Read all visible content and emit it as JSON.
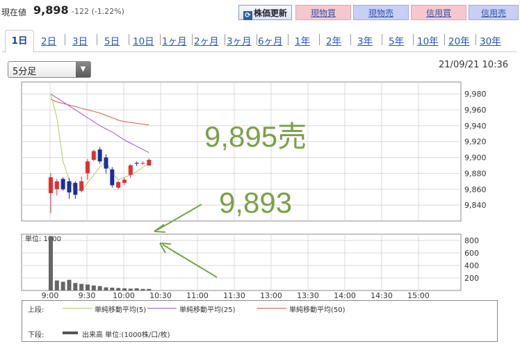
{
  "header": {
    "price_label": "現在値",
    "price_value": "9,898",
    "price_change": "-122 (-1.22%)",
    "refresh_label": "株価更新",
    "buy_cash": "現物買",
    "sell_cash": "現物売",
    "buy_margin": "信用買",
    "sell_margin": "信用売"
  },
  "tabs": [
    "1日",
    "2日",
    "3日",
    "5日",
    "10日",
    "1ヶ月",
    "2ヶ月",
    "3ヶ月",
    "6ヶ月",
    "1年",
    "2年",
    "3年",
    "5年",
    "10年",
    "20年",
    "30年"
  ],
  "interval_select": {
    "selected": "5分足"
  },
  "datetime": "21/09/21 10:36",
  "colors": {
    "up": "#e03030",
    "down": "#1a2f9e",
    "ma5": "#a8cc60",
    "ma25": "#9955d8",
    "ma50": "#d06040",
    "volume": "#666666",
    "annotation": "#7aa04a"
  },
  "chart_data": {
    "type": "candlestick",
    "x_ticks": [
      "9:00",
      "9:30",
      "10:00",
      "10:30",
      "11:00",
      "11:30",
      "13:00",
      "13:30",
      "14:00",
      "14:30",
      "15:00"
    ],
    "price_axis": {
      "ticks": [
        "9,980",
        "9,960",
        "9,940",
        "9,920",
        "9,900",
        "9,880",
        "9,860",
        "9,840"
      ],
      "ylim": [
        9820,
        9995
      ]
    },
    "volume_axis": {
      "label": "単位: 1000",
      "ticks": [
        "800",
        "600",
        "400",
        "200"
      ],
      "ylim": [
        0,
        900
      ]
    },
    "candles": [
      {
        "o": 9855,
        "h": 9880,
        "l": 9830,
        "c": 9875
      },
      {
        "o": 9860,
        "h": 9873,
        "l": 9852,
        "c": 9870
      },
      {
        "o": 9873,
        "h": 9875,
        "l": 9858,
        "c": 9860
      },
      {
        "o": 9870,
        "h": 9874,
        "l": 9848,
        "c": 9856
      },
      {
        "o": 9868,
        "h": 9870,
        "l": 9848,
        "c": 9853
      },
      {
        "o": 9858,
        "h": 9876,
        "l": 9856,
        "c": 9870
      },
      {
        "o": 9880,
        "h": 9898,
        "l": 9872,
        "c": 9895
      },
      {
        "o": 9897,
        "h": 9910,
        "l": 9895,
        "c": 9908
      },
      {
        "o": 9910,
        "h": 9913,
        "l": 9892,
        "c": 9895
      },
      {
        "o": 9900,
        "h": 9904,
        "l": 9880,
        "c": 9886
      },
      {
        "o": 9885,
        "h": 9888,
        "l": 9862,
        "c": 9865
      },
      {
        "o": 9862,
        "h": 9871,
        "l": 9860,
        "c": 9869
      },
      {
        "o": 9868,
        "h": 9874,
        "l": 9865,
        "c": 9872
      },
      {
        "o": 9878,
        "h": 9892,
        "l": 9874,
        "c": 9890
      },
      {
        "o": 9893,
        "h": 9895,
        "l": 9889,
        "c": 9892
      },
      {
        "o": 9893,
        "h": 9895,
        "l": 9891,
        "c": 9893
      },
      {
        "o": 9890,
        "h": 9899,
        "l": 9889,
        "c": 9897
      }
    ],
    "volumes": [
      870,
      160,
      140,
      170,
      120,
      105,
      95,
      80,
      70,
      50,
      45,
      40,
      35,
      30,
      35,
      25,
      25
    ],
    "ma5": [
      9980,
      9950,
      9895,
      9872,
      9860,
      9858,
      9868,
      9878,
      9888,
      9895,
      9880,
      9872,
      9875,
      9878,
      9882,
      9888,
      9892
    ],
    "ma25": [
      9980,
      9975,
      9970,
      9965,
      9960,
      9955,
      9950,
      9945,
      9940,
      9936,
      9932,
      9927,
      9922,
      9918,
      9914,
      9910,
      9906
    ],
    "ma50": [
      9973,
      9970,
      9968,
      9966,
      9964,
      9962,
      9960,
      9958,
      9956,
      9953,
      9950,
      9947,
      9945,
      9944,
      9943,
      9942,
      9941
    ],
    "annotations": [
      {
        "text": "9,895売"
      },
      {
        "text": "9,893"
      }
    ]
  },
  "legend": {
    "upper_label": "上段:",
    "lower_label": "下段:",
    "ma5": "単純移動平均(5)",
    "ma25": "単純移動平均(25)",
    "ma50": "単純移動平均(50)",
    "volume": "出来高 単位:(1000株/口/枚)"
  }
}
